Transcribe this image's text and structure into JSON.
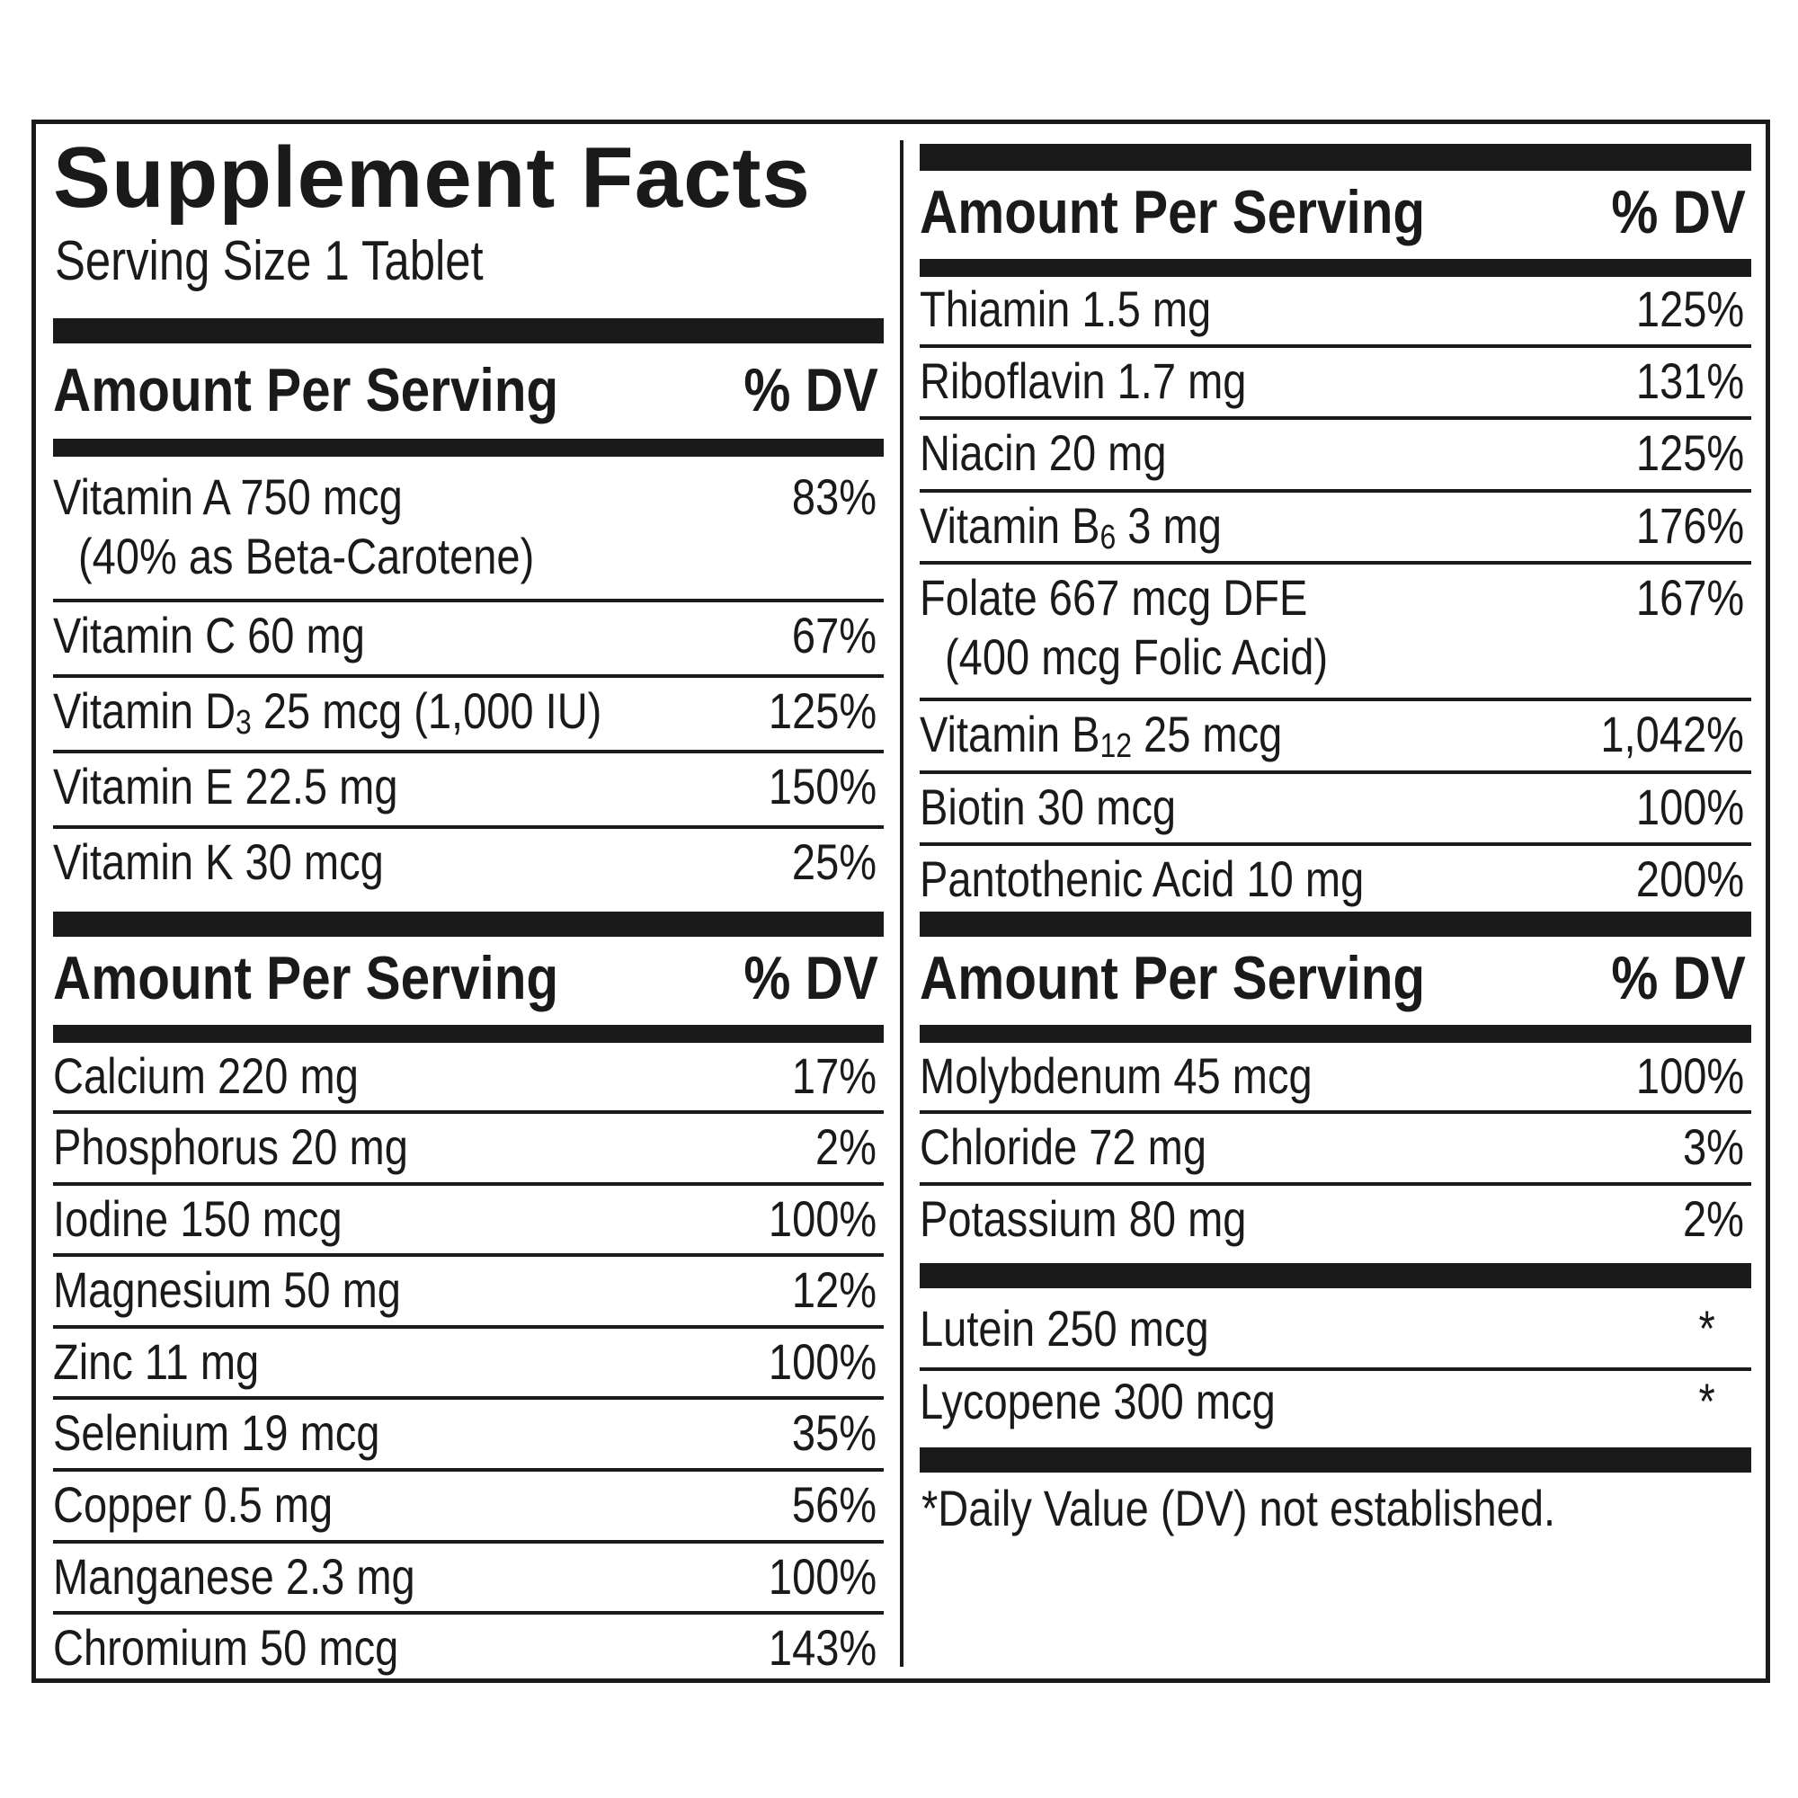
{
  "title": "Supplement Facts",
  "serving_size": "Serving Size 1 Tablet",
  "header": {
    "amount": "Amount Per Serving",
    "dv": "% DV"
  },
  "left": {
    "vitamins": [
      {
        "name": "Vitamin A 750 mcg",
        "dv": "83%",
        "note": "(40% as Beta-Carotene)"
      },
      {
        "name": "Vitamin C 60 mg",
        "dv": "67%"
      },
      {
        "pre": "Vitamin D",
        "sub": "3",
        "post": " 25 mcg (1,000 IU)",
        "dv": "125%"
      },
      {
        "name": "Vitamin E 22.5 mg",
        "dv": "150%"
      },
      {
        "name": "Vitamin K 30 mcg",
        "dv": "25%"
      }
    ],
    "minerals": [
      {
        "name": "Calcium 220 mg",
        "dv": "17%"
      },
      {
        "name": "Phosphorus 20 mg",
        "dv": "2%"
      },
      {
        "name": "Iodine 150 mcg",
        "dv": "100%"
      },
      {
        "name": "Magnesium 50 mg",
        "dv": "12%"
      },
      {
        "name": "Zinc 11 mg",
        "dv": "100%"
      },
      {
        "name": "Selenium 19 mcg",
        "dv": "35%"
      },
      {
        "name": "Copper 0.5 mg",
        "dv": "56%"
      },
      {
        "name": "Manganese 2.3 mg",
        "dv": "100%"
      },
      {
        "name": "Chromium 50 mcg",
        "dv": "143%"
      }
    ]
  },
  "right": {
    "b_vitamins": [
      {
        "name": "Thiamin 1.5 mg",
        "dv": "125%"
      },
      {
        "name": "Riboflavin 1.7 mg",
        "dv": "131%"
      },
      {
        "name": "Niacin 20 mg",
        "dv": "125%"
      },
      {
        "pre": "Vitamin B",
        "sub": "6",
        "post": " 3 mg",
        "dv": "176%"
      },
      {
        "name": "Folate 667 mcg DFE",
        "dv": "167%",
        "note": "(400 mcg Folic Acid)"
      },
      {
        "pre": "Vitamin B",
        "sub": "12",
        "post": " 25 mcg",
        "dv": "1,042%"
      },
      {
        "name": "Biotin 30 mcg",
        "dv": "100%"
      },
      {
        "name": "Pantothenic Acid 10 mg",
        "dv": "200%"
      }
    ],
    "minerals": [
      {
        "name": "Molybdenum 45 mcg",
        "dv": "100%"
      },
      {
        "name": "Chloride 72 mg",
        "dv": "3%"
      },
      {
        "name": "Potassium 80 mg",
        "dv": "2%"
      }
    ],
    "other": [
      {
        "name": "Lutein 250 mcg",
        "dv": "*"
      },
      {
        "name": "Lycopene 300 mcg",
        "dv": "*"
      }
    ],
    "footnote": "*Daily Value (DV) not established."
  }
}
